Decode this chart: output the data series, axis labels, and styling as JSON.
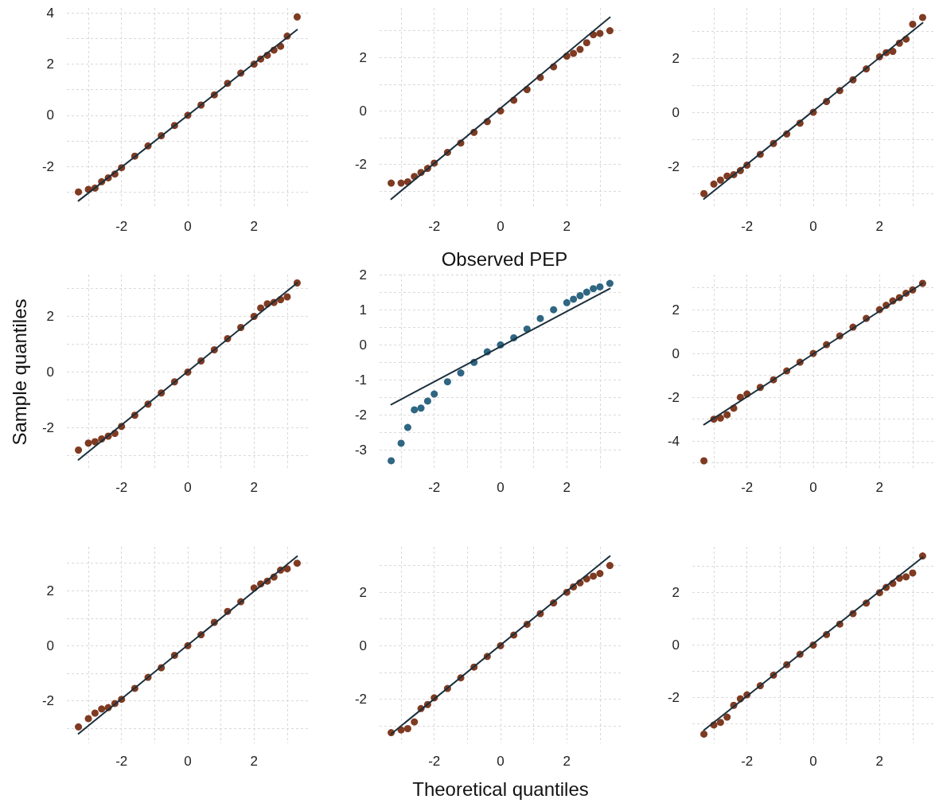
{
  "chart_data": [
    {
      "type": "scatter",
      "xlim": [
        -3.65,
        3.65
      ],
      "ylim": [
        -3.65,
        4.2
      ],
      "grid": true,
      "xticks": [
        {
          "value": -3,
          "label": null
        },
        -2,
        {
          "value": -1,
          "label": null
        },
        0,
        {
          "value": 1,
          "label": null
        },
        2,
        {
          "value": 3,
          "label": null
        }
      ],
      "yticks": [
        {
          "value": -3,
          "label": null
        },
        -2,
        {
          "value": -1,
          "label": null
        },
        0,
        {
          "value": 1,
          "label": null
        },
        2,
        {
          "value": 3,
          "label": null
        },
        4
      ],
      "series": [
        {
          "marker": "circle",
          "color": "#7f3b22",
          "x": [
            -3.3,
            -3.0,
            -2.8,
            -2.6,
            -2.4,
            -2.2,
            -2.0,
            -1.6,
            -1.2,
            -0.8,
            -0.4,
            0,
            0.4,
            0.8,
            1.2,
            1.6,
            2.0,
            2.2,
            2.4,
            2.6,
            2.8,
            3.0,
            3.3
          ],
          "values": [
            -3.0,
            -2.9,
            -2.85,
            -2.6,
            -2.45,
            -2.3,
            -2.05,
            -1.6,
            -1.2,
            -0.8,
            -0.4,
            0,
            0.4,
            0.8,
            1.25,
            1.65,
            2.0,
            2.2,
            2.35,
            2.55,
            2.7,
            3.1,
            3.85
          ]
        },
        {
          "type": "line",
          "color": "#1b2f3c",
          "x": [
            -3.3,
            3.3
          ],
          "values": [
            -3.35,
            3.35
          ]
        }
      ]
    },
    {
      "type": "scatter",
      "xlim": [
        -3.65,
        3.65
      ],
      "ylim": [
        -3.65,
        3.85
      ],
      "grid": true,
      "xticks": [
        {
          "value": -3,
          "label": null
        },
        -2,
        {
          "value": -1,
          "label": null
        },
        0,
        {
          "value": 1,
          "label": null
        },
        2,
        {
          "value": 3,
          "label": null
        }
      ],
      "yticks": [
        {
          "value": -3,
          "label": null
        },
        -2,
        {
          "value": -1,
          "label": null
        },
        0,
        {
          "value": 1,
          "label": null
        },
        2,
        {
          "value": 3,
          "label": null
        }
      ],
      "series": [
        {
          "marker": "circle",
          "color": "#7f3b22",
          "x": [
            -3.3,
            -3.0,
            -2.8,
            -2.6,
            -2.4,
            -2.2,
            -2.0,
            -1.6,
            -1.2,
            -0.8,
            -0.4,
            0,
            0.4,
            0.8,
            1.2,
            1.6,
            2.0,
            2.2,
            2.4,
            2.6,
            2.8,
            3.0,
            3.3
          ],
          "values": [
            -2.7,
            -2.7,
            -2.65,
            -2.45,
            -2.3,
            -2.15,
            -1.95,
            -1.55,
            -1.2,
            -0.8,
            -0.4,
            0,
            0.4,
            0.8,
            1.25,
            1.65,
            2.05,
            2.15,
            2.3,
            2.55,
            2.85,
            2.9,
            3.0
          ]
        },
        {
          "type": "line",
          "color": "#1b2f3c",
          "x": [
            -3.3,
            3.3
          ],
          "values": [
            -3.3,
            3.5
          ]
        }
      ]
    },
    {
      "type": "scatter",
      "xlim": [
        -3.65,
        3.65
      ],
      "ylim": [
        -3.55,
        3.85
      ],
      "grid": true,
      "xticks": [
        {
          "value": -3,
          "label": null
        },
        -2,
        {
          "value": -1,
          "label": null
        },
        0,
        {
          "value": 1,
          "label": null
        },
        2,
        {
          "value": 3,
          "label": null
        }
      ],
      "yticks": [
        {
          "value": -3,
          "label": null
        },
        -2,
        {
          "value": -1,
          "label": null
        },
        0,
        {
          "value": 1,
          "label": null
        },
        2,
        {
          "value": 3,
          "label": null
        }
      ],
      "series": [
        {
          "marker": "circle",
          "color": "#7f3b22",
          "x": [
            -3.3,
            -3.0,
            -2.8,
            -2.6,
            -2.4,
            -2.2,
            -2.0,
            -1.6,
            -1.2,
            -0.8,
            -0.4,
            0,
            0.4,
            0.8,
            1.2,
            1.6,
            2.0,
            2.2,
            2.4,
            2.6,
            2.8,
            3.0,
            3.3
          ],
          "values": [
            -3.0,
            -2.65,
            -2.5,
            -2.35,
            -2.3,
            -2.15,
            -1.95,
            -1.55,
            -1.15,
            -0.8,
            -0.4,
            0,
            0.4,
            0.8,
            1.2,
            1.6,
            2.05,
            2.2,
            2.25,
            2.55,
            2.7,
            3.25,
            3.5
          ]
        },
        {
          "type": "line",
          "color": "#1b2f3c",
          "x": [
            -3.3,
            3.3
          ],
          "values": [
            -3.2,
            3.3
          ]
        }
      ]
    },
    {
      "type": "scatter",
      "ylabel": "Sample quantiles",
      "xlim": [
        -3.65,
        3.65
      ],
      "ylim": [
        -3.5,
        3.5
      ],
      "grid": true,
      "xticks": [
        {
          "value": -3,
          "label": null
        },
        -2,
        {
          "value": -1,
          "label": null
        },
        0,
        {
          "value": 1,
          "label": null
        },
        2,
        {
          "value": 3,
          "label": null
        }
      ],
      "yticks": [
        {
          "value": -3,
          "label": null
        },
        -2,
        {
          "value": -1,
          "label": null
        },
        0,
        {
          "value": 1,
          "label": null
        },
        2,
        {
          "value": 3,
          "label": null
        }
      ],
      "series": [
        {
          "marker": "circle",
          "color": "#7f3b22",
          "x": [
            -3.3,
            -3.0,
            -2.8,
            -2.6,
            -2.4,
            -2.2,
            -2.0,
            -1.6,
            -1.2,
            -0.8,
            -0.4,
            0,
            0.4,
            0.8,
            1.2,
            1.6,
            2.0,
            2.2,
            2.4,
            2.6,
            2.8,
            3.0,
            3.3
          ],
          "values": [
            -2.8,
            -2.55,
            -2.5,
            -2.4,
            -2.3,
            -2.2,
            -1.95,
            -1.55,
            -1.15,
            -0.75,
            -0.35,
            0,
            0.4,
            0.8,
            1.2,
            1.6,
            2.0,
            2.3,
            2.45,
            2.5,
            2.6,
            2.7,
            3.2
          ]
        },
        {
          "type": "line",
          "color": "#1b2f3c",
          "x": [
            -3.3,
            3.3
          ],
          "values": [
            -3.15,
            3.2
          ]
        }
      ]
    },
    {
      "type": "scatter",
      "title": "Observed PEP",
      "xlim": [
        -3.65,
        3.65
      ],
      "ylim": [
        -3.55,
        2.0
      ],
      "grid": true,
      "xticks": [
        {
          "value": -3,
          "label": null
        },
        -2,
        {
          "value": -1,
          "label": null
        },
        0,
        {
          "value": 1,
          "label": null
        },
        2,
        {
          "value": 3,
          "label": null
        }
      ],
      "yticks": [
        -3,
        {
          "value": -2.5,
          "label": null
        },
        -2,
        {
          "value": -1.5,
          "label": null
        },
        -1,
        {
          "value": -0.5,
          "label": null
        },
        0,
        {
          "value": 0.5,
          "label": null
        },
        1,
        {
          "value": 1.5,
          "label": null
        },
        2
      ],
      "series": [
        {
          "marker": "circle",
          "color": "#2f6682",
          "x": [
            -3.3,
            -3.0,
            -2.8,
            -2.6,
            -2.4,
            -2.2,
            -2.0,
            -1.6,
            -1.2,
            -0.8,
            -0.4,
            0,
            0.4,
            0.8,
            1.2,
            1.6,
            2.0,
            2.2,
            2.4,
            2.6,
            2.8,
            3.0,
            3.3
          ],
          "values": [
            -3.3,
            -2.8,
            -2.35,
            -1.85,
            -1.8,
            -1.6,
            -1.4,
            -1.05,
            -0.8,
            -0.5,
            -0.2,
            0,
            0.2,
            0.45,
            0.75,
            1.0,
            1.2,
            1.3,
            1.4,
            1.5,
            1.6,
            1.65,
            1.75
          ]
        },
        {
          "type": "line",
          "color": "#1b2f3c",
          "x": [
            -3.3,
            3.3
          ],
          "values": [
            -1.7,
            1.6
          ]
        }
      ]
    },
    {
      "type": "scatter",
      "xlim": [
        -3.65,
        3.65
      ],
      "ylim": [
        -5.3,
        3.6
      ],
      "grid": true,
      "xticks": [
        {
          "value": -3,
          "label": null
        },
        -2,
        {
          "value": -1,
          "label": null
        },
        0,
        {
          "value": 1,
          "label": null
        },
        2,
        {
          "value": 3,
          "label": null
        }
      ],
      "yticks": [
        {
          "value": -5,
          "label": null
        },
        -4,
        {
          "value": -3,
          "label": null
        },
        -2,
        {
          "value": -1,
          "label": null
        },
        0,
        {
          "value": 1,
          "label": null
        },
        2,
        {
          "value": 3,
          "label": null
        }
      ],
      "series": [
        {
          "marker": "circle",
          "color": "#7f3b22",
          "x": [
            -3.3,
            -3.0,
            -2.8,
            -2.6,
            -2.4,
            -2.2,
            -2.0,
            -1.6,
            -1.2,
            -0.8,
            -0.4,
            0,
            0.4,
            0.8,
            1.2,
            1.6,
            2.0,
            2.2,
            2.4,
            2.6,
            2.8,
            3.0,
            3.3
          ],
          "values": [
            -4.9,
            -3.0,
            -2.95,
            -2.8,
            -2.5,
            -2.0,
            -1.85,
            -1.55,
            -1.2,
            -0.8,
            -0.4,
            0,
            0.4,
            0.8,
            1.2,
            1.6,
            2.0,
            2.2,
            2.4,
            2.55,
            2.75,
            2.9,
            3.2
          ]
        },
        {
          "type": "line",
          "color": "#1b2f3c",
          "x": [
            -3.3,
            3.3
          ],
          "values": [
            -3.25,
            3.2
          ]
        }
      ]
    },
    {
      "type": "scatter",
      "xlim": [
        -3.65,
        3.65
      ],
      "ylim": [
        -3.55,
        3.6
      ],
      "grid": true,
      "xticks": [
        {
          "value": -3,
          "label": null
        },
        -2,
        {
          "value": -1,
          "label": null
        },
        0,
        {
          "value": 1,
          "label": null
        },
        2,
        {
          "value": 3,
          "label": null
        }
      ],
      "yticks": [
        {
          "value": -3,
          "label": null
        },
        -2,
        {
          "value": -1,
          "label": null
        },
        0,
        {
          "value": 1,
          "label": null
        },
        2,
        {
          "value": 3,
          "label": null
        }
      ],
      "series": [
        {
          "marker": "circle",
          "color": "#7f3b22",
          "x": [
            -3.3,
            -3.0,
            -2.8,
            -2.6,
            -2.4,
            -2.2,
            -2.0,
            -1.6,
            -1.2,
            -0.8,
            -0.4,
            0,
            0.4,
            0.8,
            1.2,
            1.6,
            2.0,
            2.2,
            2.4,
            2.6,
            2.8,
            3.0,
            3.3
          ],
          "values": [
            -2.95,
            -2.65,
            -2.45,
            -2.3,
            -2.25,
            -2.1,
            -1.95,
            -1.55,
            -1.15,
            -0.8,
            -0.35,
            0,
            0.4,
            0.85,
            1.25,
            1.6,
            2.1,
            2.25,
            2.35,
            2.5,
            2.75,
            2.8,
            3.0
          ]
        },
        {
          "type": "line",
          "color": "#1b2f3c",
          "x": [
            -3.3,
            3.3
          ],
          "values": [
            -3.2,
            3.25
          ]
        }
      ]
    },
    {
      "type": "scatter",
      "xlabel": "Theoretical quantiles",
      "xlim": [
        -3.65,
        3.65
      ],
      "ylim": [
        -3.65,
        3.7
      ],
      "grid": true,
      "xticks": [
        {
          "value": -3,
          "label": null
        },
        -2,
        {
          "value": -1,
          "label": null
        },
        0,
        {
          "value": 1,
          "label": null
        },
        2,
        {
          "value": 3,
          "label": null
        }
      ],
      "yticks": [
        {
          "value": -3,
          "label": null
        },
        -2,
        {
          "value": -1,
          "label": null
        },
        0,
        {
          "value": 1,
          "label": null
        },
        2,
        {
          "value": 3,
          "label": null
        }
      ],
      "series": [
        {
          "marker": "circle",
          "color": "#7f3b22",
          "x": [
            -3.3,
            -3.0,
            -2.8,
            -2.6,
            -2.4,
            -2.2,
            -2.0,
            -1.6,
            -1.2,
            -0.8,
            -0.4,
            0,
            0.4,
            0.8,
            1.2,
            1.6,
            2.0,
            2.2,
            2.4,
            2.6,
            2.8,
            3.0,
            3.3
          ],
          "values": [
            -3.25,
            -3.15,
            -3.1,
            -2.85,
            -2.35,
            -2.2,
            -1.95,
            -1.6,
            -1.2,
            -0.8,
            -0.4,
            0,
            0.4,
            0.8,
            1.2,
            1.6,
            2.0,
            2.2,
            2.35,
            2.5,
            2.6,
            2.7,
            3.0
          ]
        },
        {
          "type": "line",
          "color": "#1b2f3c",
          "x": [
            -3.3,
            3.3
          ],
          "values": [
            -3.3,
            3.35
          ]
        }
      ]
    },
    {
      "type": "scatter",
      "xlim": [
        -3.65,
        3.65
      ],
      "ylim": [
        -3.75,
        3.75
      ],
      "grid": true,
      "xticks": [
        {
          "value": -3,
          "label": null
        },
        -2,
        {
          "value": -1,
          "label": null
        },
        0,
        {
          "value": 1,
          "label": null
        },
        2,
        {
          "value": 3,
          "label": null
        }
      ],
      "yticks": [
        {
          "value": -3,
          "label": null
        },
        -2,
        {
          "value": -1,
          "label": null
        },
        0,
        {
          "value": 1,
          "label": null
        },
        2,
        {
          "value": 3,
          "label": null
        }
      ],
      "series": [
        {
          "marker": "circle",
          "color": "#7f3b22",
          "x": [
            -3.3,
            -3.0,
            -2.8,
            -2.6,
            -2.4,
            -2.2,
            -2.0,
            -1.6,
            -1.2,
            -0.8,
            -0.4,
            0,
            0.4,
            0.8,
            1.2,
            1.6,
            2.0,
            2.2,
            2.4,
            2.6,
            2.8,
            3.0,
            3.3
          ],
          "values": [
            -3.4,
            -3.05,
            -2.95,
            -2.75,
            -2.3,
            -2.05,
            -1.9,
            -1.55,
            -1.15,
            -0.75,
            -0.35,
            0,
            0.4,
            0.8,
            1.2,
            1.6,
            2.0,
            2.2,
            2.35,
            2.55,
            2.6,
            2.75,
            3.4
          ]
        },
        {
          "type": "line",
          "color": "#1b2f3c",
          "x": [
            -3.3,
            3.3
          ],
          "values": [
            -3.25,
            3.35
          ]
        }
      ]
    }
  ]
}
